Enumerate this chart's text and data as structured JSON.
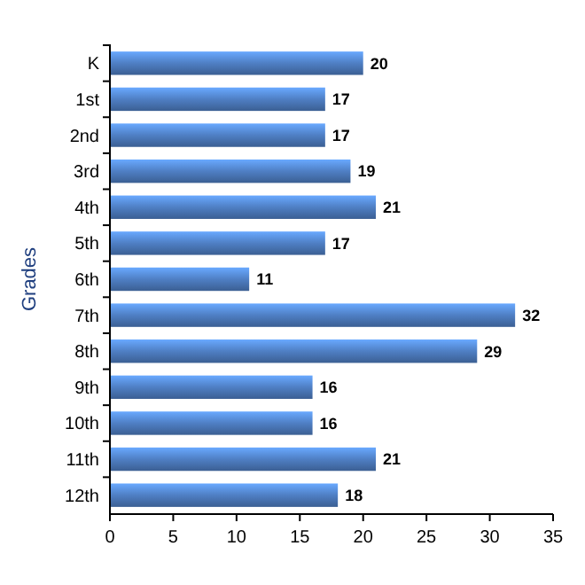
{
  "chart_data": {
    "type": "bar",
    "orientation": "horizontal",
    "ylabel": "Grades",
    "categories": [
      "K",
      "1st",
      "2nd",
      "3rd",
      "4th",
      "5th",
      "6th",
      "7th",
      "8th",
      "9th",
      "10th",
      "11th",
      "12th"
    ],
    "values": [
      20,
      17,
      17,
      19,
      21,
      17,
      11,
      32,
      29,
      16,
      16,
      21,
      18
    ],
    "color": "#4f7fc4",
    "xlim": [
      0,
      35
    ],
    "xticks": [
      0,
      5,
      10,
      15,
      20,
      25,
      30,
      35
    ],
    "data_labels": true
  }
}
